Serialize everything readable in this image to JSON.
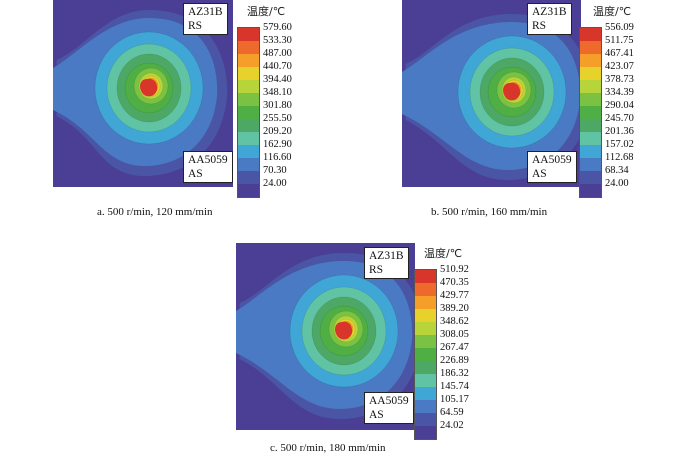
{
  "panels": [
    {
      "caption": "a.  500 r/min, 120 mm/min",
      "top_label": [
        "AZ31B",
        "RS"
      ],
      "bottom_label": [
        "AA5059",
        "AS"
      ],
      "legend_title": "温度/℃",
      "legend_values": [
        "579.60",
        "533.30",
        "487.00",
        "440.70",
        "394.40",
        "348.10",
        "301.80",
        "255.50",
        "209.20",
        "162.90",
        "116.60",
        "70.30",
        "24.00"
      ]
    },
    {
      "caption": "b.  500 r/min, 160 mm/min",
      "top_label": [
        "AZ31B",
        "RS"
      ],
      "bottom_label": [
        "AA5059",
        "AS"
      ],
      "legend_title": "温度/℃",
      "legend_values": [
        "556.09",
        "511.75",
        "467.41",
        "423.07",
        "378.73",
        "334.39",
        "290.04",
        "245.70",
        "201.36",
        "157.02",
        "112.68",
        "68.34",
        "24.00"
      ]
    },
    {
      "caption": "c.  500 r/min, 180 mm/min",
      "top_label": [
        "AZ31B",
        "RS"
      ],
      "bottom_label": [
        "AA5059",
        "AS"
      ],
      "legend_title": "温度/℃",
      "legend_values": [
        "510.92",
        "470.35",
        "429.77",
        "389.20",
        "348.62",
        "308.05",
        "267.47",
        "226.89",
        "186.32",
        "145.74",
        "105.17",
        "64.59",
        "24.02"
      ]
    }
  ],
  "colors": {
    "scale": [
      "#d8352b",
      "#ee6a2c",
      "#f59f2a",
      "#e7d22c",
      "#b7d43a",
      "#7cc242",
      "#4fae44",
      "#4ca864",
      "#5fc3a4",
      "#3fa6d6",
      "#4a7ac3",
      "#4a55a6",
      "#4a3f94"
    ]
  }
}
